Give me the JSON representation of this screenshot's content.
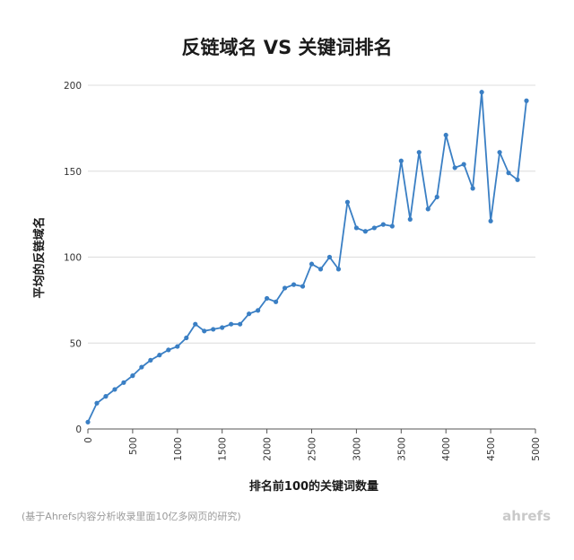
{
  "chart_data": {
    "type": "line",
    "title": "反链域名 VS 关键词排名",
    "xlabel": "排名前100的关键词数量",
    "ylabel": "平均的反链域名",
    "xlim": [
      0,
      5000
    ],
    "ylim": [
      0,
      200
    ],
    "x_ticks": [
      0,
      500,
      1000,
      1500,
      2000,
      2500,
      3000,
      3500,
      4000,
      4500,
      5000
    ],
    "y_ticks": [
      0,
      50,
      100,
      150,
      200
    ],
    "grid": true,
    "legend": "none",
    "series_color": "#3a7fc4",
    "series": [
      {
        "x": [
          0,
          100,
          200,
          300,
          400,
          500,
          600,
          700,
          800,
          900,
          1000,
          1100,
          1200,
          1300,
          1400,
          1500,
          1600,
          1700,
          1800,
          1900,
          2000,
          2100,
          2200,
          2300,
          2400,
          2500,
          2600,
          2700,
          2800,
          2900,
          3000,
          3100,
          3200,
          3300,
          3400,
          3500,
          3600,
          3700,
          3800,
          3900,
          4000,
          4100,
          4200,
          4300,
          4400,
          4500,
          4600,
          4700,
          4800,
          4900
        ],
        "values": [
          4,
          15,
          19,
          23,
          27,
          31,
          36,
          40,
          43,
          46,
          48,
          53,
          61,
          57,
          58,
          59,
          61,
          61,
          67,
          69,
          76,
          74,
          82,
          84,
          83,
          96,
          93,
          100,
          93,
          132,
          117,
          115,
          117,
          119,
          118,
          156,
          122,
          161,
          128,
          135,
          171,
          152,
          154,
          140,
          196,
          121,
          161,
          149,
          145,
          191
        ]
      }
    ]
  },
  "footnote": "(基于Ahrefs内容分析收录里面10亿多网页的研究)",
  "brand": "ahrefs"
}
